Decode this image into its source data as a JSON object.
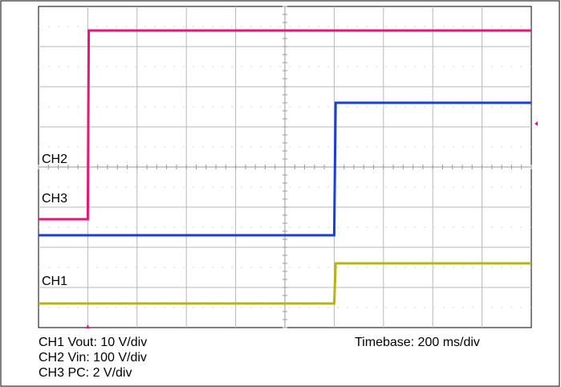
{
  "chart_data": {
    "type": "line",
    "title": "",
    "xlabel": "",
    "ylabel": "",
    "grid": true,
    "x_divisions": 10,
    "y_divisions": 8,
    "series": [
      {
        "name": "CH2",
        "label": "CH2",
        "color": "#e8157a",
        "scale": "Vin: 100 V/div",
        "points": [
          [
            0.0,
            2.7
          ],
          [
            1.0,
            2.7
          ],
          [
            1.02,
            7.4
          ],
          [
            10.0,
            7.4
          ]
        ]
      },
      {
        "name": "CH3",
        "label": "CH3",
        "color": "#1a3fd6",
        "scale": "PC: 2 V/div",
        "points": [
          [
            0.0,
            2.3
          ],
          [
            6.0,
            2.3
          ],
          [
            6.03,
            5.6
          ],
          [
            10.0,
            5.6
          ]
        ]
      },
      {
        "name": "CH1",
        "label": "CH1",
        "color": "#b5b514",
        "scale": "Vout: 10 V/div",
        "points": [
          [
            0.0,
            0.6
          ],
          [
            6.0,
            0.6
          ],
          [
            6.03,
            1.6
          ],
          [
            10.0,
            1.6
          ]
        ]
      }
    ]
  },
  "captions": {
    "ch1": "CH1 Vout: 10 V/div",
    "ch2": "CH2 Vin: 100 V/div",
    "ch3": "CH3 PC: 2 V/div",
    "timebase": "Timebase: 200 ms/div"
  },
  "colors": {
    "grid": "#b8b8b8",
    "axis_ticks": "#9a9a9a",
    "frame": "#000000",
    "marker": "#e8157a"
  }
}
